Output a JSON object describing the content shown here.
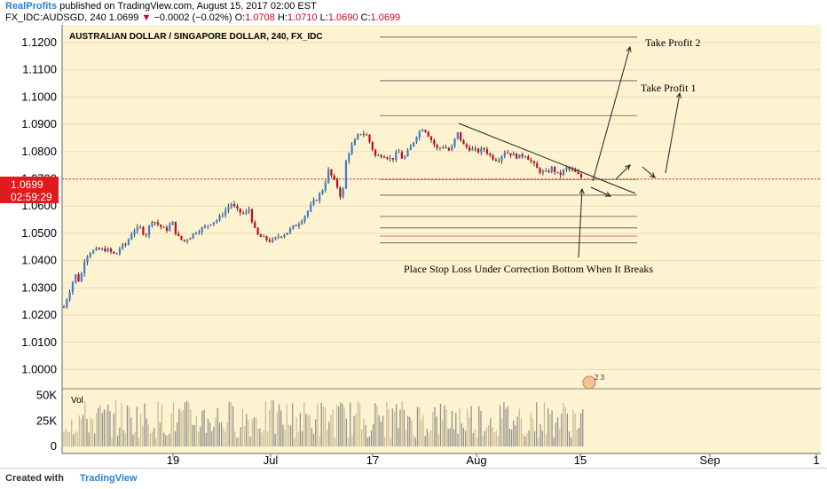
{
  "header": {
    "publisher": "RealProfits",
    "published_text": "published on TradingView.com, August 15, 2017 02:00 EST",
    "symbol_line": "FX_IDC:AUDSGD, 240  1.0699",
    "change": "−0.0002 (−0.02%)",
    "ohlc": [
      {
        "label": "O:",
        "value": "1.0708"
      },
      {
        "label": "H:",
        "value": "1.0710"
      },
      {
        "label": "L:",
        "value": "1.0690"
      },
      {
        "label": "C:",
        "value": "1.0699"
      }
    ]
  },
  "footer": {
    "created_with": "Created with",
    "brand": "TradingView"
  },
  "colors": {
    "background": "#fdf3d0",
    "up": "#3b7dd8",
    "down": "#d0021b",
    "wick": "#000000",
    "price_tag": "#e01b1b"
  },
  "chart_data": {
    "type": "candlestick",
    "title": "AUSTRALIAN DOLLAR / SINGAPORE DOLLAR, 240, FX_IDC",
    "ylim": [
      0.993,
      1.1265
    ],
    "y_ticks": [
      "1.1200",
      "1.1100",
      "1.1000",
      "1.0900",
      "1.0800",
      "1.0700",
      "1.0600",
      "1.0500",
      "1.0400",
      "1.0300",
      "1.0200",
      "1.0100",
      "1.0000"
    ],
    "x_ticks": [
      "19",
      "Jul",
      "17",
      "Aug",
      "15",
      "Sep",
      "1"
    ],
    "last_price": "1.0699",
    "countdown": "02:59:29",
    "price_path": [
      {
        "t": 0,
        "p": 1.023
      },
      {
        "t": 6,
        "p": 1.03
      },
      {
        "t": 10,
        "p": 1.035
      },
      {
        "t": 14,
        "p": 1.032
      },
      {
        "t": 18,
        "p": 1.04
      },
      {
        "t": 22,
        "p": 1.043
      },
      {
        "t": 30,
        "p": 1.044
      },
      {
        "t": 38,
        "p": 1.044
      },
      {
        "t": 46,
        "p": 1.042
      },
      {
        "t": 50,
        "p": 1.045
      },
      {
        "t": 55,
        "p": 1.046
      },
      {
        "t": 61,
        "p": 1.051
      },
      {
        "t": 68,
        "p": 1.052
      },
      {
        "t": 72,
        "p": 1.049
      },
      {
        "t": 78,
        "p": 1.055
      },
      {
        "t": 84,
        "p": 1.053
      },
      {
        "t": 90,
        "p": 1.051
      },
      {
        "t": 96,
        "p": 1.054
      },
      {
        "t": 100,
        "p": 1.049
      },
      {
        "t": 106,
        "p": 1.047
      },
      {
        "t": 112,
        "p": 1.049
      },
      {
        "t": 118,
        "p": 1.051
      },
      {
        "t": 124,
        "p": 1.052
      },
      {
        "t": 130,
        "p": 1.054
      },
      {
        "t": 136,
        "p": 1.055
      },
      {
        "t": 142,
        "p": 1.058
      },
      {
        "t": 148,
        "p": 1.061
      },
      {
        "t": 154,
        "p": 1.058
      },
      {
        "t": 160,
        "p": 1.057
      },
      {
        "t": 164,
        "p": 1.059
      },
      {
        "t": 168,
        "p": 1.052
      },
      {
        "t": 172,
        "p": 1.049
      },
      {
        "t": 178,
        "p": 1.048
      },
      {
        "t": 184,
        "p": 1.047
      },
      {
        "t": 190,
        "p": 1.049
      },
      {
        "t": 196,
        "p": 1.05
      },
      {
        "t": 202,
        "p": 1.052
      },
      {
        "t": 208,
        "p": 1.054
      },
      {
        "t": 214,
        "p": 1.057
      },
      {
        "t": 220,
        "p": 1.061
      },
      {
        "t": 226,
        "p": 1.064
      },
      {
        "t": 230,
        "p": 1.067
      },
      {
        "t": 234,
        "p": 1.073
      },
      {
        "t": 238,
        "p": 1.07
      },
      {
        "t": 242,
        "p": 1.067
      },
      {
        "t": 246,
        "p": 1.062
      },
      {
        "t": 250,
        "p": 1.078
      },
      {
        "t": 256,
        "p": 1.083
      },
      {
        "t": 262,
        "p": 1.087
      },
      {
        "t": 268,
        "p": 1.086
      },
      {
        "t": 272,
        "p": 1.082
      },
      {
        "t": 276,
        "p": 1.078
      },
      {
        "t": 282,
        "p": 1.079
      },
      {
        "t": 290,
        "p": 1.077
      },
      {
        "t": 296,
        "p": 1.08
      },
      {
        "t": 300,
        "p": 1.077
      },
      {
        "t": 306,
        "p": 1.081
      },
      {
        "t": 312,
        "p": 1.086
      },
      {
        "t": 318,
        "p": 1.089
      },
      {
        "t": 324,
        "p": 1.085
      },
      {
        "t": 330,
        "p": 1.081
      },
      {
        "t": 336,
        "p": 1.082
      },
      {
        "t": 342,
        "p": 1.08
      },
      {
        "t": 348,
        "p": 1.087
      },
      {
        "t": 354,
        "p": 1.082
      },
      {
        "t": 360,
        "p": 1.081
      },
      {
        "t": 366,
        "p": 1.08
      },
      {
        "t": 372,
        "p": 1.081
      },
      {
        "t": 378,
        "p": 1.078
      },
      {
        "t": 384,
        "p": 1.077
      },
      {
        "t": 390,
        "p": 1.08
      },
      {
        "t": 396,
        "p": 1.079
      },
      {
        "t": 402,
        "p": 1.078
      },
      {
        "t": 408,
        "p": 1.079
      },
      {
        "t": 414,
        "p": 1.076
      },
      {
        "t": 420,
        "p": 1.073
      },
      {
        "t": 426,
        "p": 1.072
      },
      {
        "t": 432,
        "p": 1.074
      },
      {
        "t": 438,
        "p": 1.071
      },
      {
        "t": 444,
        "p": 1.074
      },
      {
        "t": 450,
        "p": 1.073
      },
      {
        "t": 456,
        "p": 1.071
      },
      {
        "t": 460,
        "p": 1.07
      }
    ],
    "levels": [
      1.122,
      1.106,
      1.0932,
      1.0697,
      1.064,
      1.0562,
      1.052,
      1.049,
      1.0465
    ],
    "annotations": [
      {
        "text": "Take Profit 2"
      },
      {
        "text": "Take Profit 1"
      },
      {
        "text": "Place Stop Loss Under Correction Bottom When It Breaks"
      }
    ],
    "volume": {
      "label": "Vol",
      "y_ticks": [
        "50K",
        "25K",
        "0"
      ],
      "ylim": [
        0,
        55000
      ]
    }
  }
}
